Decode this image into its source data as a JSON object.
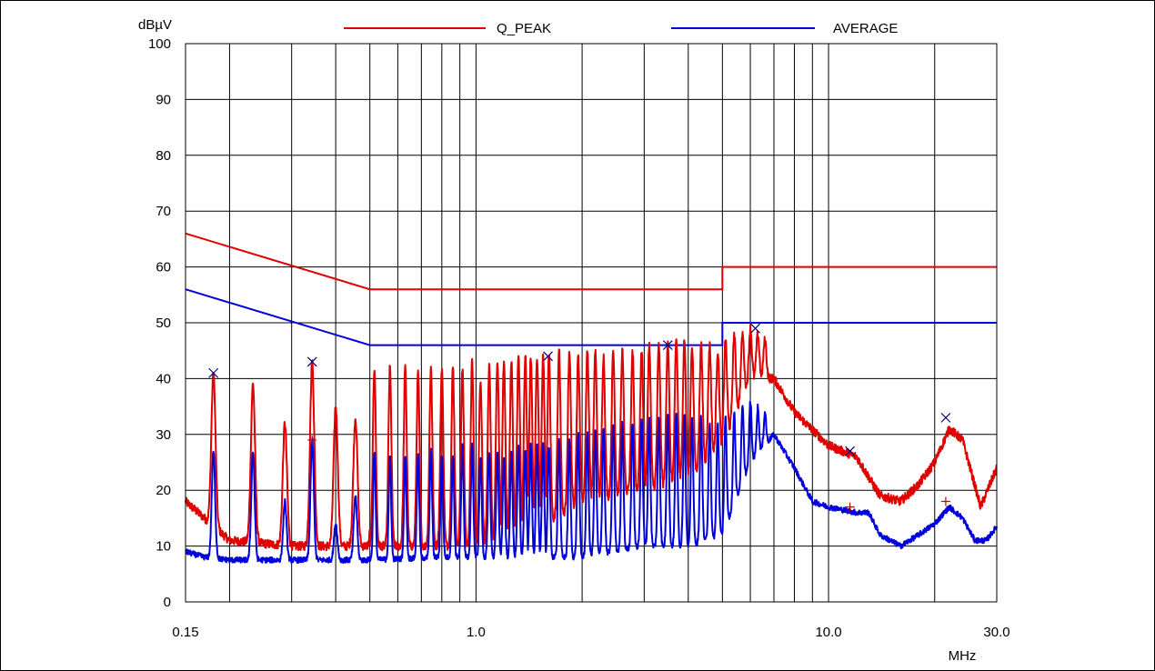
{
  "chart_data": {
    "type": "line",
    "xscale": "log",
    "xlim": [
      0.15,
      30.0
    ],
    "ylim": [
      0,
      100
    ],
    "grid": true,
    "ylabel": "dBµV",
    "xlabel": "MHz",
    "x_ticks": [
      {
        "value": 0.15,
        "label": "0.15"
      },
      {
        "value": 1.0,
        "label": "1.0"
      },
      {
        "value": 10.0,
        "label": "10.0"
      },
      {
        "value": 30.0,
        "label": "30.0"
      }
    ],
    "y_ticks": [
      {
        "value": 0,
        "label": "0"
      },
      {
        "value": 10,
        "label": "10"
      },
      {
        "value": 20,
        "label": "20"
      },
      {
        "value": 30,
        "label": "30"
      },
      {
        "value": 40,
        "label": "40"
      },
      {
        "value": 50,
        "label": "50"
      },
      {
        "value": 60,
        "label": "60"
      },
      {
        "value": 70,
        "label": "70"
      },
      {
        "value": 80,
        "label": "80"
      },
      {
        "value": 90,
        "label": "90"
      },
      {
        "value": 100,
        "label": "100"
      }
    ],
    "legend_placement": "top",
    "legend": [
      {
        "label": "Q_PEAK",
        "color": "#e00000"
      },
      {
        "label": "AVERAGE",
        "color": "#0000dd"
      }
    ],
    "limit_lines": [
      {
        "name": "Q_PEAK",
        "color": "#e00000",
        "x": [
          0.15,
          0.5,
          0.5,
          5.0,
          5.0,
          30.0
        ],
        "y": [
          66,
          56,
          56,
          56,
          60,
          60
        ]
      },
      {
        "name": "AVERAGE",
        "color": "#0000dd",
        "x": [
          0.15,
          0.5,
          0.5,
          5.0,
          5.0,
          30.0
        ],
        "y": [
          56,
          46,
          46,
          46,
          50,
          50
        ]
      }
    ],
    "peak_trace": {
      "color": "#e00000",
      "base": [
        [
          0.15,
          18
        ],
        [
          0.2,
          11
        ],
        [
          0.3,
          10
        ],
        [
          0.5,
          10
        ],
        [
          1.0,
          10
        ],
        [
          1.5,
          13
        ],
        [
          2.0,
          18
        ],
        [
          3.0,
          20
        ],
        [
          4.0,
          22
        ],
        [
          5.0,
          28
        ],
        [
          6.0,
          40
        ],
        [
          7.0,
          40
        ],
        [
          8.0,
          34
        ],
        [
          10.0,
          28
        ],
        [
          12.0,
          26
        ],
        [
          14.0,
          19
        ],
        [
          16.0,
          18
        ],
        [
          18.0,
          21
        ],
        [
          20.0,
          25
        ],
        [
          22.0,
          31
        ],
        [
          24.0,
          29
        ],
        [
          27.0,
          17
        ],
        [
          30.0,
          24
        ]
      ],
      "peaks": [
        {
          "x": 0.18,
          "y": 41
        },
        {
          "x": 0.233,
          "y": 39
        },
        {
          "x": 0.287,
          "y": 32
        },
        {
          "x": 0.343,
          "y": 43
        },
        {
          "x": 0.4,
          "y": 35
        },
        {
          "x": 0.455,
          "y": 33
        },
        {
          "x": 0.515,
          "y": 42
        },
        {
          "x": 0.57,
          "y": 42
        },
        {
          "x": 0.63,
          "y": 42
        },
        {
          "x": 0.685,
          "y": 41
        },
        {
          "x": 0.745,
          "y": 42
        },
        {
          "x": 0.8,
          "y": 42
        },
        {
          "x": 0.86,
          "y": 42
        },
        {
          "x": 0.915,
          "y": 42
        },
        {
          "x": 0.975,
          "y": 43
        },
        {
          "x": 1.03,
          "y": 40
        },
        {
          "x": 1.09,
          "y": 42
        },
        {
          "x": 1.15,
          "y": 43
        },
        {
          "x": 1.2,
          "y": 43
        },
        {
          "x": 1.26,
          "y": 43
        },
        {
          "x": 1.32,
          "y": 44
        },
        {
          "x": 1.38,
          "y": 44
        },
        {
          "x": 1.43,
          "y": 44
        },
        {
          "x": 1.49,
          "y": 44
        },
        {
          "x": 1.55,
          "y": 44
        },
        {
          "x": 1.61,
          "y": 44
        },
        {
          "x": 1.72,
          "y": 45
        },
        {
          "x": 1.84,
          "y": 45
        },
        {
          "x": 1.95,
          "y": 44
        },
        {
          "x": 2.07,
          "y": 45
        },
        {
          "x": 2.18,
          "y": 45
        },
        {
          "x": 2.3,
          "y": 44
        },
        {
          "x": 2.45,
          "y": 45
        },
        {
          "x": 2.6,
          "y": 45
        },
        {
          "x": 2.78,
          "y": 45
        },
        {
          "x": 2.95,
          "y": 45
        },
        {
          "x": 3.1,
          "y": 46
        },
        {
          "x": 3.3,
          "y": 46
        },
        {
          "x": 3.5,
          "y": 47
        },
        {
          "x": 3.7,
          "y": 47
        },
        {
          "x": 3.9,
          "y": 47
        },
        {
          "x": 4.1,
          "y": 46
        },
        {
          "x": 4.35,
          "y": 46
        },
        {
          "x": 4.6,
          "y": 46
        },
        {
          "x": 4.85,
          "y": 45
        },
        {
          "x": 5.1,
          "y": 47
        },
        {
          "x": 5.4,
          "y": 48
        },
        {
          "x": 5.7,
          "y": 48
        },
        {
          "x": 6.0,
          "y": 49
        },
        {
          "x": 6.3,
          "y": 48
        },
        {
          "x": 6.6,
          "y": 47
        }
      ]
    },
    "average_trace": {
      "color": "#0000dd",
      "base": [
        [
          0.15,
          9
        ],
        [
          0.17,
          8
        ],
        [
          0.2,
          7.5
        ],
        [
          0.3,
          7.5
        ],
        [
          0.5,
          7.5
        ],
        [
          0.8,
          8
        ],
        [
          1.0,
          8
        ],
        [
          2.0,
          8
        ],
        [
          3.0,
          10
        ],
        [
          4.0,
          10
        ],
        [
          5.0,
          12
        ],
        [
          6.0,
          25
        ],
        [
          7.0,
          30
        ],
        [
          8.0,
          24
        ],
        [
          9.0,
          18
        ],
        [
          10.0,
          17
        ],
        [
          12.0,
          16
        ],
        [
          13.0,
          16
        ],
        [
          14.0,
          12
        ],
        [
          16.0,
          10
        ],
        [
          18.0,
          12
        ],
        [
          20.0,
          14
        ],
        [
          22.0,
          17
        ],
        [
          24.0,
          15
        ],
        [
          26.0,
          11
        ],
        [
          28.0,
          11
        ],
        [
          30.0,
          13.5
        ]
      ],
      "peaks": [
        {
          "x": 0.18,
          "y": 27
        },
        {
          "x": 0.233,
          "y": 27
        },
        {
          "x": 0.287,
          "y": 18
        },
        {
          "x": 0.343,
          "y": 29
        },
        {
          "x": 0.4,
          "y": 14
        },
        {
          "x": 0.455,
          "y": 19
        },
        {
          "x": 0.515,
          "y": 27
        },
        {
          "x": 0.57,
          "y": 26
        },
        {
          "x": 0.63,
          "y": 26
        },
        {
          "x": 0.685,
          "y": 26
        },
        {
          "x": 0.745,
          "y": 27
        },
        {
          "x": 0.8,
          "y": 26
        },
        {
          "x": 0.86,
          "y": 26
        },
        {
          "x": 0.915,
          "y": 28
        },
        {
          "x": 0.975,
          "y": 28
        },
        {
          "x": 1.03,
          "y": 26
        },
        {
          "x": 1.09,
          "y": 27
        },
        {
          "x": 1.15,
          "y": 27
        },
        {
          "x": 1.2,
          "y": 26
        },
        {
          "x": 1.26,
          "y": 27
        },
        {
          "x": 1.32,
          "y": 28
        },
        {
          "x": 1.38,
          "y": 27
        },
        {
          "x": 1.43,
          "y": 28
        },
        {
          "x": 1.49,
          "y": 28
        },
        {
          "x": 1.55,
          "y": 28
        },
        {
          "x": 1.61,
          "y": 28
        },
        {
          "x": 1.72,
          "y": 29
        },
        {
          "x": 1.84,
          "y": 29
        },
        {
          "x": 1.95,
          "y": 30
        },
        {
          "x": 2.07,
          "y": 30
        },
        {
          "x": 2.18,
          "y": 31
        },
        {
          "x": 2.3,
          "y": 31
        },
        {
          "x": 2.45,
          "y": 32
        },
        {
          "x": 2.6,
          "y": 32
        },
        {
          "x": 2.78,
          "y": 32
        },
        {
          "x": 2.95,
          "y": 33
        },
        {
          "x": 3.1,
          "y": 33
        },
        {
          "x": 3.3,
          "y": 33
        },
        {
          "x": 3.5,
          "y": 34
        },
        {
          "x": 3.7,
          "y": 34
        },
        {
          "x": 3.9,
          "y": 34
        },
        {
          "x": 4.1,
          "y": 33
        },
        {
          "x": 4.35,
          "y": 33
        },
        {
          "x": 4.6,
          "y": 32
        },
        {
          "x": 4.85,
          "y": 32
        },
        {
          "x": 5.1,
          "y": 33
        },
        {
          "x": 5.4,
          "y": 34
        },
        {
          "x": 5.7,
          "y": 35
        },
        {
          "x": 6.0,
          "y": 36
        },
        {
          "x": 6.3,
          "y": 35
        },
        {
          "x": 6.6,
          "y": 34
        }
      ]
    },
    "qp_markers": [
      {
        "x": 0.18,
        "y": 41
      },
      {
        "x": 0.343,
        "y": 43
      },
      {
        "x": 1.6,
        "y": 44
      },
      {
        "x": 3.5,
        "y": 46
      },
      {
        "x": 6.2,
        "y": 49
      },
      {
        "x": 11.5,
        "y": 27
      },
      {
        "x": 21.5,
        "y": 33
      }
    ],
    "avg_markers": [
      {
        "x": 0.343,
        "y": 29
      },
      {
        "x": 11.5,
        "y": 17
      },
      {
        "x": 21.5,
        "y": 18
      }
    ]
  }
}
